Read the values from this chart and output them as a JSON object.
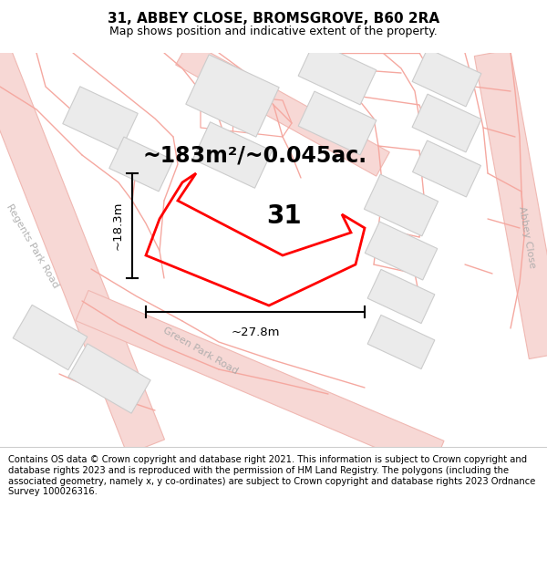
{
  "title": "31, ABBEY CLOSE, BROMSGROVE, B60 2RA",
  "subtitle": "Map shows position and indicative extent of the property.",
  "area_text": "~183m²/~0.045ac.",
  "label_31": "31",
  "dim_height": "~18.3m",
  "dim_width": "~27.8m",
  "footer": "Contains OS data © Crown copyright and database right 2021. This information is subject to Crown copyright and database rights 2023 and is reproduced with the permission of HM Land Registry. The polygons (including the associated geometry, namely x, y co-ordinates) are subject to Crown copyright and database rights 2023 Ordnance Survey 100026316.",
  "map_bg": "#ffffff",
  "building_fill": "#ebebeb",
  "building_edge": "#cccccc",
  "road_fill": "#f7d8d5",
  "road_edge": "#f0b8b2",
  "boundary_line_color": "#f5a8a0",
  "highlight_color": "#ff0000",
  "road_label_color": "#aaaaaa",
  "footer_sep_color": "#cccccc",
  "title_fontsize": 11,
  "subtitle_fontsize": 9,
  "area_fontsize": 17,
  "label_fontsize": 20,
  "dim_fontsize": 9.5,
  "road_label_fontsize": 8,
  "footer_fontsize": 7.2
}
